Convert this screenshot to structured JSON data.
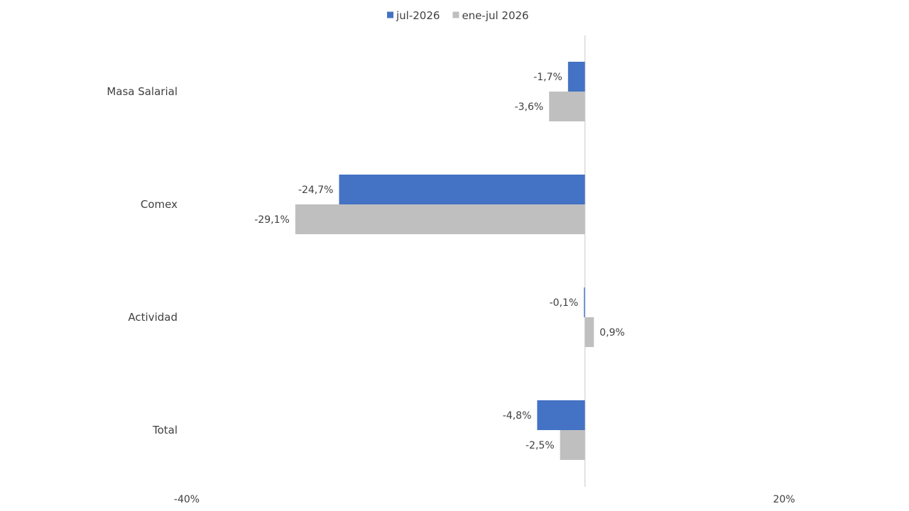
{
  "chart_data": {
    "type": "bar",
    "orientation": "horizontal",
    "categories": [
      "Masa Salarial",
      "Comex",
      "Actividad",
      "Total"
    ],
    "series": [
      {
        "name": "jul-2026",
        "color": "#4472C4",
        "values": [
          -1.7,
          -24.7,
          -0.1,
          -4.8
        ],
        "labels": [
          "-1,7%",
          "-24,7%",
          "-0,1%",
          "-4,8%"
        ]
      },
      {
        "name": "ene-jul 2026",
        "color": "#BFBFBF",
        "values": [
          -3.6,
          -29.1,
          0.9,
          -2.5
        ],
        "labels": [
          "-3,6%",
          "-29,1%",
          "0,9%",
          "-2,5%"
        ]
      }
    ],
    "xlim": [
      -40,
      20
    ],
    "x_ticks": [
      {
        "value": -40,
        "label": "-40%"
      },
      {
        "value": 20,
        "label": "20%"
      }
    ],
    "legend_position": "top-center",
    "grid": false,
    "zero_line_color": "#D9D9D9"
  }
}
